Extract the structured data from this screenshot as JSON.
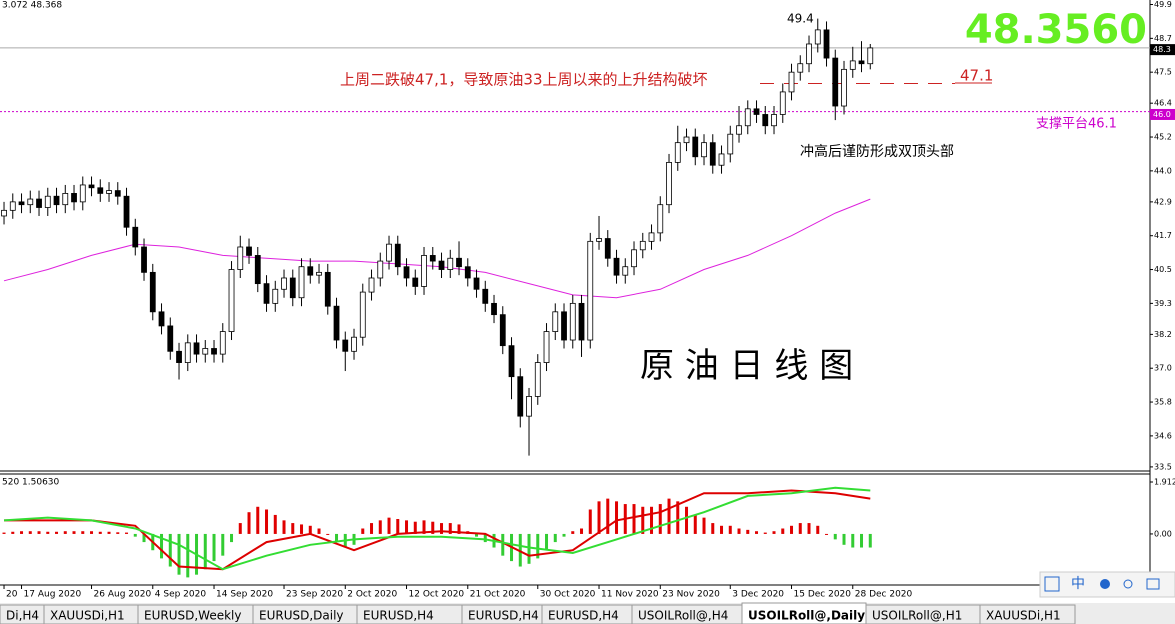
{
  "header": {
    "quote": "3.072 48.368",
    "price": "48.3560"
  },
  "annotations": {
    "peak": "49.4",
    "break_note": "上周二跌破47,1，导致原油33上周以来的上升结构破坏",
    "level_note": "47.1",
    "support_note": "支撑平台46.1",
    "top_note": "冲高后谨防形成双顶头部",
    "chart_name": "原 油 日 线 图"
  },
  "chart_data": [
    {
      "type": "candlestick",
      "open": [
        42.4,
        42.6,
        42.9,
        42.8,
        43.0,
        42.7,
        43.1,
        42.8,
        43.2,
        42.9,
        43.5,
        43.4,
        43.2,
        43.3,
        43.1,
        42.0,
        41.3,
        40.4,
        39.0,
        38.5,
        37.6,
        37.2,
        37.9,
        37.5,
        37.7,
        37.5,
        38.3,
        40.5,
        41.3,
        41.0,
        40.0,
        39.3,
        39.8,
        40.2,
        39.5,
        40.6,
        40.3,
        40.4,
        39.2,
        38.0,
        37.6,
        38.1,
        39.7,
        40.2,
        40.8,
        41.4,
        40.6,
        40.2,
        39.9,
        41.0,
        40.8,
        40.5,
        40.9,
        40.6,
        40.2,
        39.8,
        39.3,
        38.9,
        37.8,
        36.7,
        35.3,
        36.0,
        37.2,
        38.3,
        39.0,
        38.0,
        39.3,
        38.0,
        41.5,
        41.6,
        40.9,
        40.3,
        40.6,
        41.2,
        41.5,
        41.8,
        42.8,
        44.3,
        45.0,
        45.2,
        44.5,
        45.0,
        44.2,
        44.6,
        45.3,
        45.6,
        46.2,
        46.0,
        45.6,
        46.0,
        46.8,
        47.5,
        47.8,
        48.5,
        49.0,
        48.0,
        46.3,
        47.6,
        47.9,
        47.8
      ],
      "high": [
        42.9,
        43.2,
        43.2,
        43.3,
        43.3,
        43.4,
        43.4,
        43.5,
        43.5,
        43.8,
        43.8,
        43.7,
        43.6,
        43.6,
        43.4,
        42.3,
        41.6,
        40.7,
        39.3,
        38.8,
        37.9,
        38.2,
        38.2,
        38.0,
        38.0,
        38.6,
        40.8,
        41.7,
        41.6,
        41.3,
        40.3,
        40.1,
        40.5,
        40.5,
        40.9,
        40.9,
        40.7,
        40.7,
        39.5,
        38.3,
        38.4,
        40.0,
        40.5,
        41.1,
        41.7,
        41.7,
        40.9,
        40.5,
        41.3,
        41.3,
        41.1,
        41.2,
        41.5,
        40.9,
        40.5,
        40.1,
        39.6,
        39.2,
        38.1,
        37.0,
        36.3,
        37.5,
        38.6,
        39.3,
        39.3,
        39.6,
        39.6,
        41.8,
        42.4,
        41.9,
        41.2,
        40.9,
        41.5,
        41.8,
        42.1,
        43.1,
        44.6,
        45.6,
        45.5,
        45.5,
        45.3,
        45.3,
        44.9,
        45.6,
        46.3,
        46.5,
        46.5,
        46.3,
        46.3,
        47.1,
        47.8,
        48.1,
        48.8,
        49.4,
        49.3,
        48.3,
        47.9,
        48.4,
        48.6,
        48.5
      ],
      "low": [
        42.1,
        42.3,
        42.5,
        42.5,
        42.4,
        42.4,
        42.5,
        42.5,
        42.6,
        42.6,
        43.1,
        42.9,
        42.9,
        42.8,
        41.7,
        41.0,
        40.1,
        38.7,
        38.2,
        37.3,
        36.6,
        36.9,
        37.2,
        37.2,
        37.2,
        37.2,
        38.0,
        40.2,
        40.7,
        39.7,
        39.0,
        39.0,
        39.5,
        39.2,
        39.2,
        40.0,
        40.0,
        38.9,
        37.7,
        36.9,
        37.3,
        37.8,
        39.4,
        39.9,
        40.5,
        40.3,
        39.9,
        39.6,
        39.6,
        40.5,
        40.2,
        40.2,
        40.3,
        39.9,
        39.5,
        39.0,
        38.6,
        37.5,
        35.9,
        34.9,
        33.9,
        35.7,
        36.9,
        38.0,
        37.7,
        37.7,
        37.4,
        37.7,
        41.2,
        40.6,
        40.0,
        40.0,
        40.3,
        40.9,
        41.2,
        41.5,
        42.5,
        44.0,
        44.7,
        44.2,
        44.2,
        43.9,
        43.9,
        44.3,
        45.0,
        45.3,
        45.7,
        45.3,
        45.3,
        45.7,
        46.5,
        47.2,
        47.5,
        48.2,
        47.7,
        45.8,
        46.0,
        47.3,
        47.5,
        47.6
      ],
      "close": [
        42.6,
        42.9,
        42.8,
        43.0,
        42.7,
        43.1,
        42.8,
        43.2,
        42.9,
        43.5,
        43.4,
        43.2,
        43.3,
        43.1,
        42.0,
        41.3,
        40.4,
        39.0,
        38.5,
        37.6,
        37.2,
        37.9,
        37.5,
        37.7,
        37.5,
        38.3,
        40.5,
        41.3,
        41.0,
        40.0,
        39.3,
        39.8,
        40.2,
        39.5,
        40.6,
        40.3,
        40.4,
        39.2,
        38.0,
        37.6,
        38.1,
        39.7,
        40.2,
        40.8,
        41.4,
        40.6,
        40.2,
        39.9,
        41.0,
        40.8,
        40.5,
        40.9,
        40.6,
        40.2,
        39.8,
        39.3,
        38.9,
        37.8,
        36.7,
        35.3,
        36.0,
        37.2,
        38.3,
        39.0,
        38.0,
        39.3,
        38.0,
        41.5,
        41.6,
        40.9,
        40.3,
        40.6,
        41.2,
        41.5,
        41.8,
        42.8,
        44.3,
        45.0,
        45.2,
        44.5,
        45.0,
        44.2,
        44.6,
        45.3,
        45.6,
        46.2,
        46.0,
        45.6,
        46.0,
        46.8,
        47.5,
        47.8,
        48.5,
        49.0,
        48.0,
        46.3,
        47.6,
        47.9,
        47.8,
        48.36
      ],
      "up_color": "#ffffff",
      "down_color": "#000000",
      "ma": {
        "color": "#dd22dd",
        "x": [
          0,
          5,
          10,
          15,
          20,
          25,
          30,
          35,
          40,
          45,
          50,
          55,
          60,
          65,
          70,
          75,
          80,
          85,
          90,
          95,
          99
        ],
        "values": [
          40.1,
          40.5,
          41.0,
          41.4,
          41.3,
          41.0,
          40.9,
          40.8,
          40.8,
          40.7,
          40.6,
          40.4,
          40.0,
          39.6,
          39.5,
          39.8,
          40.5,
          41.0,
          41.7,
          42.5,
          43.0
        ]
      },
      "levels": [
        {
          "value": 46.1,
          "color": "#cc00cc"
        },
        {
          "value": 47.1,
          "color": "#cc2222"
        },
        {
          "value": 48.36,
          "color": "#aaaaaa"
        }
      ],
      "price_tags": [
        {
          "value": 48.3,
          "label": "48.3",
          "color": "#000000"
        },
        {
          "value": 46.0,
          "label": "46.0",
          "color": "#cc00cc"
        }
      ],
      "xlim": [
        -0.46,
        130.97
      ],
      "ylim": [
        33.39,
        50.06
      ],
      "yticks": [
        49.9,
        48.7,
        47.5,
        46.4,
        45.2,
        {
          "value": 44,
          "label": "44.0"
        },
        42.9,
        41.7,
        40.5,
        39.3,
        38.2,
        {
          "value": 37,
          "label": "37.0"
        },
        35.8,
        34.6,
        33.5
      ],
      "xticks": [
        {
          "value": 0,
          "label": "20"
        },
        {
          "value": 2,
          "label": "17 Aug 2020"
        },
        {
          "value": 10,
          "label": "26 Aug 2020"
        },
        {
          "value": 17,
          "label": "4 Sep 2020"
        },
        {
          "value": 24,
          "label": "14 Sep 2020"
        },
        {
          "value": 32,
          "label": "23 Sep 2020"
        },
        {
          "value": 39,
          "label": "2 Oct 2020"
        },
        {
          "value": 46,
          "label": "12 Oct 2020"
        },
        {
          "value": 53,
          "label": "21 Oct 2020"
        },
        {
          "value": 61,
          "label": "30 Oct 2020"
        },
        {
          "value": 68,
          "label": "11 Nov 2020"
        },
        {
          "value": 75,
          "label": "23 Nov 2020"
        },
        {
          "value": 83,
          "label": "3 Dec 2020"
        },
        {
          "value": 90,
          "label": "15 Dec 2020"
        },
        {
          "value": 97,
          "label": "28 Dec 2020"
        }
      ]
    },
    {
      "type": "macd",
      "title": "520 1.50630",
      "histogram": [
        0.05,
        0.08,
        0.1,
        0.1,
        0.1,
        0.08,
        0.08,
        0.1,
        0.1,
        0.1,
        0.1,
        0.08,
        0.08,
        0.06,
        0.05,
        -0.1,
        -0.3,
        -0.6,
        -0.9,
        -1.2,
        -1.5,
        -1.6,
        -1.5,
        -1.3,
        -1.0,
        -0.8,
        -0.3,
        0.4,
        0.8,
        1.0,
        0.9,
        0.7,
        0.5,
        0.4,
        0.35,
        0.3,
        0.2,
        0.0,
        -0.3,
        -0.5,
        -0.4,
        0.2,
        0.4,
        0.5,
        0.6,
        0.55,
        0.5,
        0.45,
        0.5,
        0.45,
        0.4,
        0.4,
        0.35,
        0.1,
        -0.1,
        -0.3,
        -0.5,
        -0.8,
        -1.0,
        -1.2,
        -1.1,
        -0.9,
        -0.6,
        -0.3,
        -0.1,
        0.1,
        0.2,
        0.9,
        1.2,
        1.3,
        1.2,
        1.1,
        1.1,
        1.0,
        1.0,
        1.1,
        1.3,
        1.2,
        1.0,
        0.7,
        0.6,
        0.4,
        0.3,
        0.3,
        0.2,
        0.15,
        0.1,
        0.05,
        0.1,
        0.2,
        0.3,
        0.4,
        0.4,
        0.3,
        0.0,
        -0.2,
        -0.4,
        -0.5,
        -0.5,
        -0.5
      ],
      "positive_color": "#e00000",
      "negative_color": "#33cc33",
      "lines": [
        {
          "color": "#dd0000",
          "x": [
            0,
            5,
            10,
            15,
            20,
            25,
            30,
            35,
            40,
            45,
            50,
            55,
            60,
            65,
            70,
            75,
            80,
            85,
            90,
            95,
            99
          ],
          "values": [
            0.5,
            0.5,
            0.5,
            0.3,
            -1.2,
            -1.3,
            -0.3,
            0.0,
            -0.6,
            0.0,
            0.1,
            0.0,
            -0.8,
            -0.6,
            0.5,
            0.8,
            1.5,
            1.5,
            1.6,
            1.5,
            1.3
          ]
        },
        {
          "color": "#33dd33",
          "x": [
            0,
            5,
            10,
            15,
            20,
            25,
            30,
            35,
            40,
            45,
            50,
            55,
            60,
            65,
            70,
            75,
            80,
            85,
            90,
            95,
            99
          ],
          "values": [
            0.5,
            0.6,
            0.5,
            0.2,
            -0.4,
            -1.3,
            -0.8,
            -0.4,
            -0.2,
            -0.1,
            -0.1,
            -0.2,
            -0.5,
            -0.7,
            -0.2,
            0.3,
            0.8,
            1.4,
            1.5,
            1.7,
            1.6
          ]
        }
      ],
      "ylim": [
        -1.88,
        2.17
      ],
      "yticks": [
        1.912,
        {
          "value": 0,
          "label": "0.00"
        }
      ]
    }
  ],
  "tabs": [
    "Di,H4",
    "XAUUSDi,H1",
    "EURUSD,Weekly",
    "EURUSD,Daily",
    "EURUSD,H4",
    "EURUSD,H4",
    "EURUSD,H4",
    "USOILRoll@,H4",
    "USOILRoll@,Daily",
    "USOILRoll@,H1",
    "XAUUSDi,H1"
  ],
  "active_tab": 8,
  "ime": {
    "lang": "中"
  }
}
